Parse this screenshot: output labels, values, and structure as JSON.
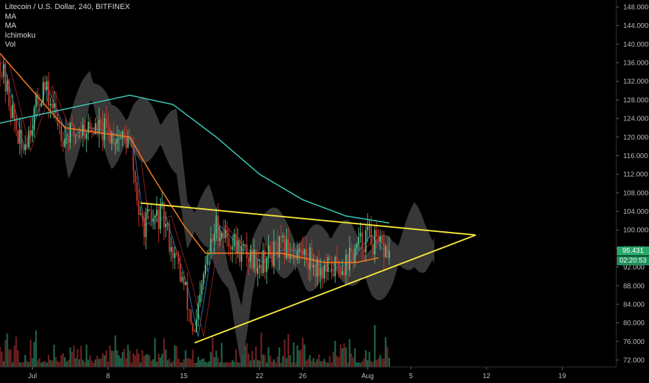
{
  "legend": {
    "symbol": "Litecoin / U.S. Dollar, 240, BITFINEX",
    "indicators": [
      "MA",
      "MA",
      "Ichimoku",
      "Vol"
    ]
  },
  "colors": {
    "background": "#000000",
    "up_candle": "#53b987",
    "down_candle": "#c0392b",
    "ma_fast": "#f07a22",
    "ma_slow": "#3cc4b4",
    "cloud": "#4a4a4a",
    "trendline": "#f3e63a",
    "price_tag": "#28a76a",
    "countdown_tag": "#1f8f5a"
  },
  "price_tag": {
    "value": "95.431",
    "countdown": "02:20:53"
  },
  "chart_data": {
    "type": "candlestick",
    "title": "Litecoin / U.S. Dollar, 240, BITFINEX",
    "y_axis": {
      "ticks": [
        72,
        76,
        80,
        84,
        88,
        92,
        96,
        100,
        104,
        108,
        112,
        116,
        120,
        124,
        128,
        132,
        136,
        140,
        144,
        148
      ],
      "tick_labels": [
        "72.000",
        "76.000",
        "80.000",
        "84.000",
        "88.000",
        "92.000",
        "96.000",
        "100.000",
        "104.000",
        "108.000",
        "112.000",
        "116.000",
        "120.000",
        "124.000",
        "128.000",
        "132.000",
        "136.000",
        "140.000",
        "144.000",
        "148.000"
      ],
      "range": [
        70.5,
        149.5
      ]
    },
    "x_axis": {
      "ticks": [
        "2018-07-01",
        "2018-07-08",
        "2018-07-15",
        "2018-07-22",
        "2018-07-26",
        "2018-08-01",
        "2018-08-05",
        "2018-08-12",
        "2018-08-19"
      ],
      "tick_labels": [
        "Jul",
        "8",
        "15",
        "22",
        "26",
        "Aug",
        "5",
        "12",
        "19"
      ],
      "range": [
        "2018-06-28",
        "2018-08-24"
      ]
    },
    "price_series": {
      "name": "LTC/USD",
      "dates": [
        "2018-06-28",
        "2018-06-30",
        "2018-07-02",
        "2018-07-04",
        "2018-07-06",
        "2018-07-08",
        "2018-07-10",
        "2018-07-11",
        "2018-07-13",
        "2018-07-15",
        "2018-07-16",
        "2018-07-17",
        "2018-07-18",
        "2018-07-20",
        "2018-07-22",
        "2018-07-24",
        "2018-07-26",
        "2018-07-28",
        "2018-07-30",
        "2018-08-01",
        "2018-08-02",
        "2018-08-03"
      ],
      "close": [
        136,
        117,
        131,
        120,
        122,
        121,
        119,
        101,
        103,
        88,
        77,
        92,
        101,
        96,
        93,
        96,
        95,
        91,
        93,
        99,
        96,
        95.4
      ]
    },
    "ma_fast": {
      "dates": [
        "2018-06-28",
        "2018-07-01",
        "2018-07-04",
        "2018-07-07",
        "2018-07-10",
        "2018-07-12",
        "2018-07-15",
        "2018-07-17",
        "2018-07-20",
        "2018-07-24",
        "2018-07-28",
        "2018-07-31",
        "2018-08-02"
      ],
      "values": [
        138,
        130,
        122,
        121,
        120,
        112,
        101,
        95,
        95,
        95,
        93,
        93,
        94
      ]
    },
    "ma_slow": {
      "dates": [
        "2018-06-28",
        "2018-07-02",
        "2018-07-06",
        "2018-07-10",
        "2018-07-14",
        "2018-07-18",
        "2018-07-22",
        "2018-07-26",
        "2018-07-30",
        "2018-08-03"
      ],
      "values": [
        123,
        125,
        127,
        129,
        127,
        120,
        112,
        106.5,
        103,
        101.5
      ]
    },
    "trendlines": [
      {
        "from": [
          "2018-07-11",
          105.8
        ],
        "to": [
          "2018-08-11",
          98.9
        ]
      },
      {
        "from": [
          "2018-07-16",
          75.7
        ],
        "to": [
          "2018-08-11",
          98.9
        ]
      }
    ],
    "volume_panel": true,
    "grid": false,
    "legend_position": "top-left"
  }
}
